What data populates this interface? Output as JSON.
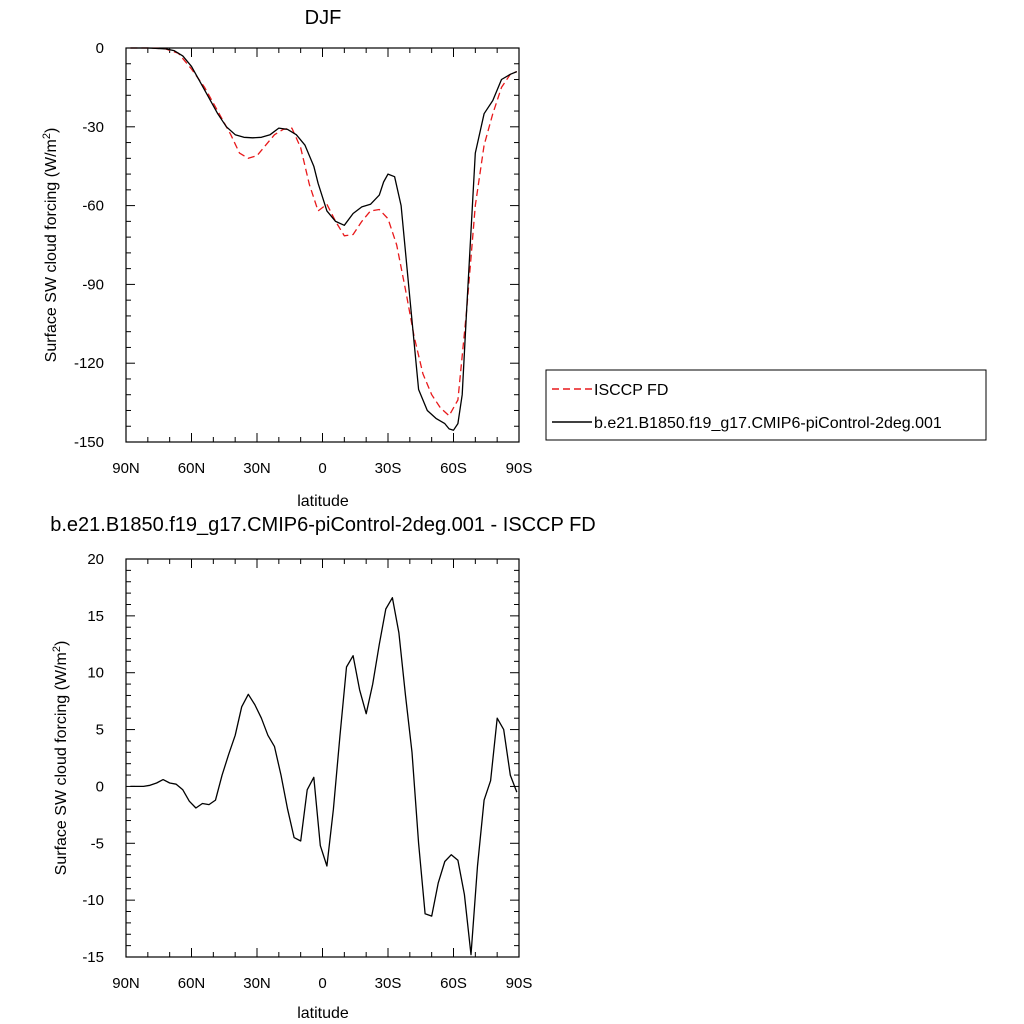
{
  "chart_data": [
    {
      "type": "line",
      "title": "DJF",
      "xlabel": "latitude",
      "ylabel": "Surface SW cloud forcing (W/m",
      "ylabel_sup": "2",
      "ylabel_close": ")",
      "xlim": [
        90,
        -90
      ],
      "ylim": [
        -150,
        0
      ],
      "x_ticks": [
        {
          "v": 90,
          "label": "90N"
        },
        {
          "v": 60,
          "label": "60N"
        },
        {
          "v": 30,
          "label": "30N"
        },
        {
          "v": 0,
          "label": "0"
        },
        {
          "v": -30,
          "label": "30S"
        },
        {
          "v": -60,
          "label": "60S"
        },
        {
          "v": -90,
          "label": "90S"
        }
      ],
      "y_ticks": [
        {
          "v": 0,
          "label": "0"
        },
        {
          "v": -30,
          "label": "-30"
        },
        {
          "v": -60,
          "label": "-60"
        },
        {
          "v": -90,
          "label": "-90"
        },
        {
          "v": -120,
          "label": "-120"
        },
        {
          "v": -150,
          "label": "-150"
        }
      ],
      "legend_position": "right",
      "series": [
        {
          "name": "ISCCP FD",
          "color": "#e8191b",
          "dash": "dashed",
          "x": [
            88,
            80,
            72,
            66,
            60,
            54,
            48,
            42,
            38,
            34,
            30,
            26,
            22,
            18,
            14,
            10,
            6,
            2,
            -2,
            -6,
            -10,
            -14,
            -18,
            -22,
            -26,
            -30,
            -34,
            -38,
            -42,
            -46,
            -50,
            -54,
            -58,
            -62,
            -66,
            -70,
            -74,
            -78,
            -82,
            -86,
            -89
          ],
          "y": [
            0,
            0,
            -0.3,
            -2,
            -8,
            -15,
            -24,
            -33,
            -40,
            -42,
            -41,
            -37,
            -33,
            -31,
            -30.5,
            -38,
            -52,
            -62,
            -59.5,
            -66,
            -71.5,
            -71,
            -66,
            -62,
            -61.5,
            -65,
            -75,
            -92,
            -110,
            -124,
            -132,
            -137,
            -140,
            -134,
            -100,
            -60,
            -37,
            -25,
            -15,
            -10,
            -9
          ]
        },
        {
          "name": "b.e21.B1850.f19_g17.CMIP6-piControl-2deg.001",
          "color": "#000000",
          "dash": "solid",
          "x": [
            88,
            80,
            72,
            68,
            64,
            60,
            56,
            52,
            48,
            44,
            40,
            36,
            32,
            28,
            24,
            20,
            16,
            12,
            8,
            4,
            2,
            -2,
            -6,
            -10,
            -14,
            -18,
            -22,
            -26,
            -28,
            -30,
            -33,
            -36,
            -40,
            -44,
            -48,
            -52,
            -56,
            -58,
            -60,
            -62,
            -64,
            -66,
            -70,
            -74,
            -78,
            -82,
            -86,
            -89
          ],
          "y": [
            0,
            0,
            -0.3,
            -1,
            -3,
            -7,
            -13,
            -19,
            -25,
            -30,
            -33,
            -34,
            -34.2,
            -34,
            -33,
            -30.5,
            -31,
            -33,
            -37,
            -45,
            -51.5,
            -62,
            -66,
            -67.5,
            -63,
            -60.5,
            -59.5,
            -56,
            -51,
            -48,
            -49,
            -60,
            -95,
            -130,
            -138,
            -141,
            -143,
            -145,
            -145.5,
            -143,
            -132,
            -100,
            -40,
            -25,
            -20,
            -12,
            -10,
            -9
          ]
        }
      ]
    },
    {
      "type": "line",
      "title": "b.e21.B1850.f19_g17.CMIP6-piControl-2deg.001 - ISCCP FD",
      "xlabel": "latitude",
      "ylabel": "Surface SW cloud forcing (W/m",
      "ylabel_sup": "2",
      "ylabel_close": ")",
      "xlim": [
        90,
        -90
      ],
      "ylim": [
        -15,
        20
      ],
      "x_ticks": [
        {
          "v": 90,
          "label": "90N"
        },
        {
          "v": 60,
          "label": "60N"
        },
        {
          "v": 30,
          "label": "30N"
        },
        {
          "v": 0,
          "label": "0"
        },
        {
          "v": -30,
          "label": "30S"
        },
        {
          "v": -60,
          "label": "60S"
        },
        {
          "v": -90,
          "label": "90S"
        }
      ],
      "y_ticks": [
        {
          "v": 20,
          "label": "20"
        },
        {
          "v": 15,
          "label": "15"
        },
        {
          "v": 10,
          "label": "10"
        },
        {
          "v": 5,
          "label": "5"
        },
        {
          "v": 0,
          "label": "0"
        },
        {
          "v": -5,
          "label": "-5"
        },
        {
          "v": -10,
          "label": "-10"
        },
        {
          "v": -15,
          "label": "-15"
        }
      ],
      "series": [
        {
          "name": "",
          "color": "#000000",
          "dash": "solid",
          "x": [
            88,
            85,
            82,
            79,
            76,
            73,
            70,
            67,
            64,
            61,
            58,
            55,
            52,
            49,
            46,
            43,
            40,
            37,
            34,
            31,
            28,
            25,
            22,
            19,
            16,
            13,
            10,
            7,
            4,
            1,
            -2,
            -5,
            -8,
            -11,
            -14,
            -17,
            -20,
            -23,
            -26,
            -29,
            -32,
            -35,
            -38,
            -41,
            -44,
            -47,
            -50,
            -53,
            -56,
            -59,
            -62,
            -65,
            -68,
            -71,
            -74,
            -77,
            -80,
            -83,
            -86,
            -89
          ],
          "y": [
            0,
            0,
            0,
            0.1,
            0.3,
            0.6,
            0.3,
            0.2,
            -0.3,
            -1.3,
            -1.9,
            -1.5,
            -1.6,
            -1.2,
            1.0,
            2.8,
            4.5,
            7.0,
            8.1,
            7.2,
            6.0,
            4.5,
            3.5,
            1.0,
            -2.0,
            -4.5,
            -4.8,
            -0.3,
            0.8,
            -5.2,
            -7.0,
            -2.0,
            4.5,
            10.5,
            11.5,
            8.5,
            6.4,
            9.0,
            12.5,
            15.6,
            16.6,
            13.5,
            8.0,
            3.0,
            -5.0,
            -11.2,
            -11.4,
            -8.5,
            -6.6,
            -6.0,
            -6.5,
            -9.5,
            -14.8,
            -7.0,
            -1.2,
            0.5,
            6.0,
            5.0,
            1.0,
            -0.5
          ]
        }
      ]
    }
  ]
}
